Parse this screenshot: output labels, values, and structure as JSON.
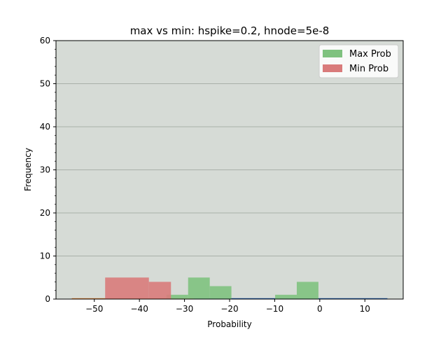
{
  "chart_data": {
    "type": "bar",
    "title": "max vs min: hspike=0.2, hnode=5e-8",
    "xlabel": "Probability",
    "ylabel": "Frequency",
    "xlim": [
      -58.5,
      18.5
    ],
    "ylim": [
      0,
      60
    ],
    "x_ticks": [
      -50,
      -40,
      -30,
      -20,
      -10,
      0,
      10
    ],
    "y_ticks": [
      0,
      10,
      20,
      30,
      40,
      50,
      60
    ],
    "grid": "horizontal",
    "legend_position": "top-right",
    "background": "#d6dbd6",
    "series": [
      {
        "name": "Max Prob",
        "color": "#7fc27f",
        "bins": [
          {
            "x0": -34.0,
            "x1": -29.2,
            "count": 1
          },
          {
            "x0": -29.2,
            "x1": -24.4,
            "count": 5
          },
          {
            "x0": -24.4,
            "x1": -19.6,
            "count": 3
          },
          {
            "x0": -9.9,
            "x1": -5.1,
            "count": 1
          },
          {
            "x0": -5.1,
            "x1": -0.3,
            "count": 4
          }
        ]
      },
      {
        "name": "Min Prob",
        "color": "#d97b7b",
        "bins": [
          {
            "x0": -47.6,
            "x1": -37.9,
            "count": 5
          },
          {
            "x0": -37.9,
            "x1": -33.0,
            "count": 4
          }
        ]
      }
    ],
    "baseline_lines": [
      {
        "color": "#e8883a",
        "x0": -55,
        "x1": -28
      },
      {
        "color": "#1f5fb4",
        "x0": -28,
        "x1": 15
      }
    ]
  }
}
